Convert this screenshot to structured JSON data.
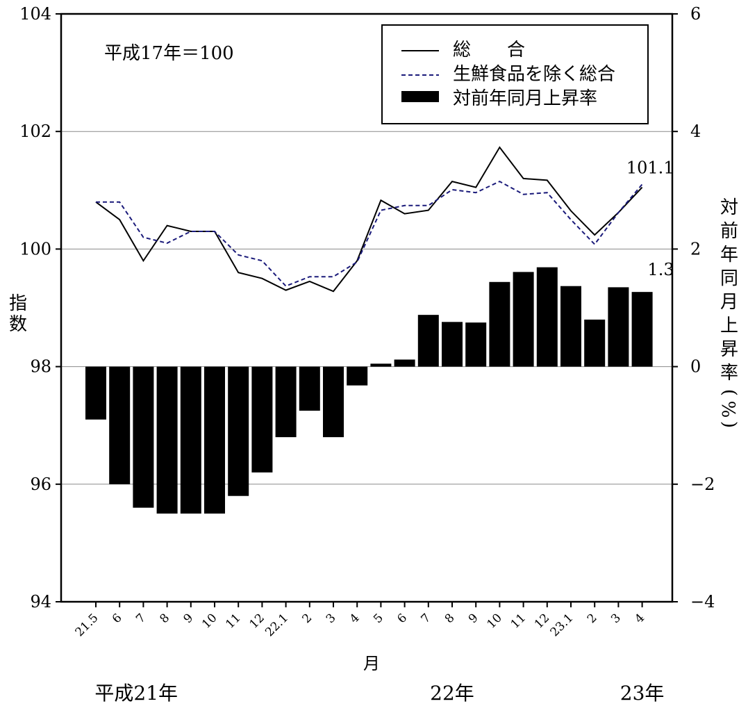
{
  "chart_data": {
    "type": "bar",
    "base_note": "平成17年＝100",
    "x_label": "月",
    "y_left_label": "指数",
    "y_right_label": "対前年同月上昇率(%)",
    "categories": [
      "21.5",
      "6",
      "7",
      "8",
      "9",
      "10",
      "11",
      "12",
      "22.1",
      "2",
      "3",
      "4",
      "5",
      "6",
      "7",
      "8",
      "9",
      "10",
      "11",
      "12",
      "23.1",
      "2",
      "3",
      "4"
    ],
    "year_labels": [
      {
        "text": "平成21年",
        "category_index": 1
      },
      {
        "text": "22年",
        "category_index": 15
      },
      {
        "text": "23年",
        "category_index": 23
      }
    ],
    "y_left": {
      "min": 94,
      "max": 104,
      "ticks": [
        "94",
        "96",
        "98",
        "100",
        "102",
        "104"
      ]
    },
    "y_right": {
      "min": -4,
      "max": 6,
      "ticks": [
        "−4",
        "−2",
        "0",
        "2",
        "4",
        "6"
      ]
    },
    "grid": "horizontal",
    "legend_position": "top-right",
    "series": [
      {
        "name": "総　　合",
        "kind": "line",
        "style": "solid",
        "axis": "left",
        "color": "#000000",
        "values": [
          100.8,
          100.5,
          99.8,
          100.4,
          100.3,
          100.3,
          99.6,
          99.5,
          99.3,
          99.45,
          99.28,
          99.8,
          100.83,
          100.6,
          100.66,
          101.15,
          101.05,
          101.73,
          101.2,
          101.17,
          100.65,
          100.24,
          100.62,
          101.05
        ]
      },
      {
        "name": "生鮮食品を除く総合",
        "kind": "line",
        "style": "dashed",
        "axis": "left",
        "color": "#1a1a7a",
        "values": [
          100.8,
          100.8,
          100.2,
          100.1,
          100.3,
          100.3,
          99.9,
          99.8,
          99.37,
          99.53,
          99.53,
          99.78,
          100.66,
          100.74,
          100.74,
          101.01,
          100.96,
          101.15,
          100.93,
          100.96,
          100.5,
          100.08,
          100.62,
          101.1
        ]
      },
      {
        "name": "対前年同月上昇率",
        "kind": "bar",
        "axis": "right",
        "color": "#000000",
        "values": [
          -0.9,
          -2.0,
          -2.4,
          -2.5,
          -2.5,
          -2.5,
          -2.2,
          -1.8,
          -1.2,
          -0.75,
          -1.2,
          -0.32,
          0.05,
          0.12,
          0.88,
          0.76,
          0.75,
          1.44,
          1.61,
          1.69,
          1.37,
          0.8,
          1.35,
          1.27
        ]
      }
    ],
    "annotations": [
      {
        "text": "101.1",
        "series": "総　　合",
        "category_index": 23
      },
      {
        "text": "1.3",
        "series": "対前年同月上昇率",
        "category_index": 23
      }
    ]
  }
}
